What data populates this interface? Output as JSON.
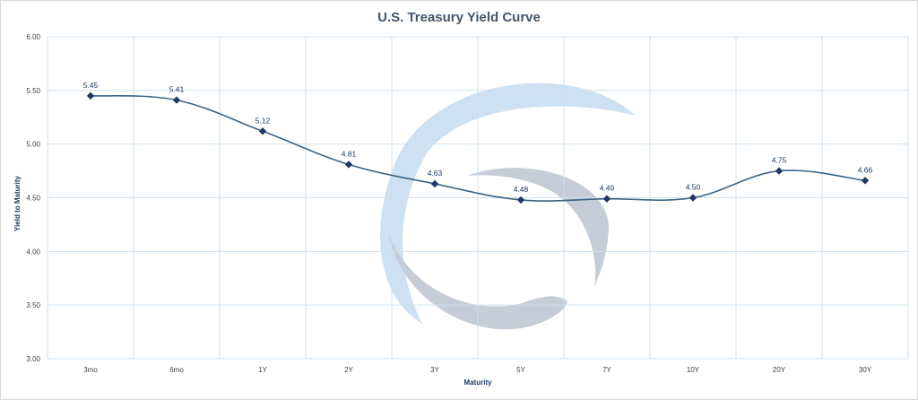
{
  "chart_data": {
    "type": "line",
    "title": "U.S. Treasury Yield Curve",
    "xlabel": "Maturity",
    "ylabel": "Yield to Maturity",
    "categories": [
      "3mo",
      "6mo",
      "1Y",
      "2Y",
      "3Y",
      "5Y",
      "7Y",
      "10Y",
      "20Y",
      "30Y"
    ],
    "series": [
      {
        "values": [
          5.45,
          5.41,
          5.12,
          4.81,
          4.63,
          4.48,
          4.49,
          4.5,
          4.75,
          4.66
        ]
      }
    ],
    "data_labels": [
      "5.45",
      "5.41",
      "5.12",
      "4.81",
      "4.63",
      "4.48",
      "4.49",
      "4.50",
      "4.75",
      "4.66"
    ],
    "ylim": [
      3.0,
      6.0
    ],
    "yticks": [
      3.0,
      3.5,
      4.0,
      4.5,
      5.0,
      5.5,
      6.0
    ],
    "ytick_labels": [
      "3.00",
      "3.50",
      "4.00",
      "4.50",
      "5.00",
      "5.50",
      "6.00"
    ],
    "grid": true,
    "smooth": true,
    "marker": "diamond",
    "colors": {
      "line": "#3c6483",
      "marker": "#1f3864",
      "grid": "#cfe0ee",
      "title": "#44546a",
      "watermark_blue": "#bdd7ee",
      "watermark_gray": "#b4bccb"
    }
  }
}
